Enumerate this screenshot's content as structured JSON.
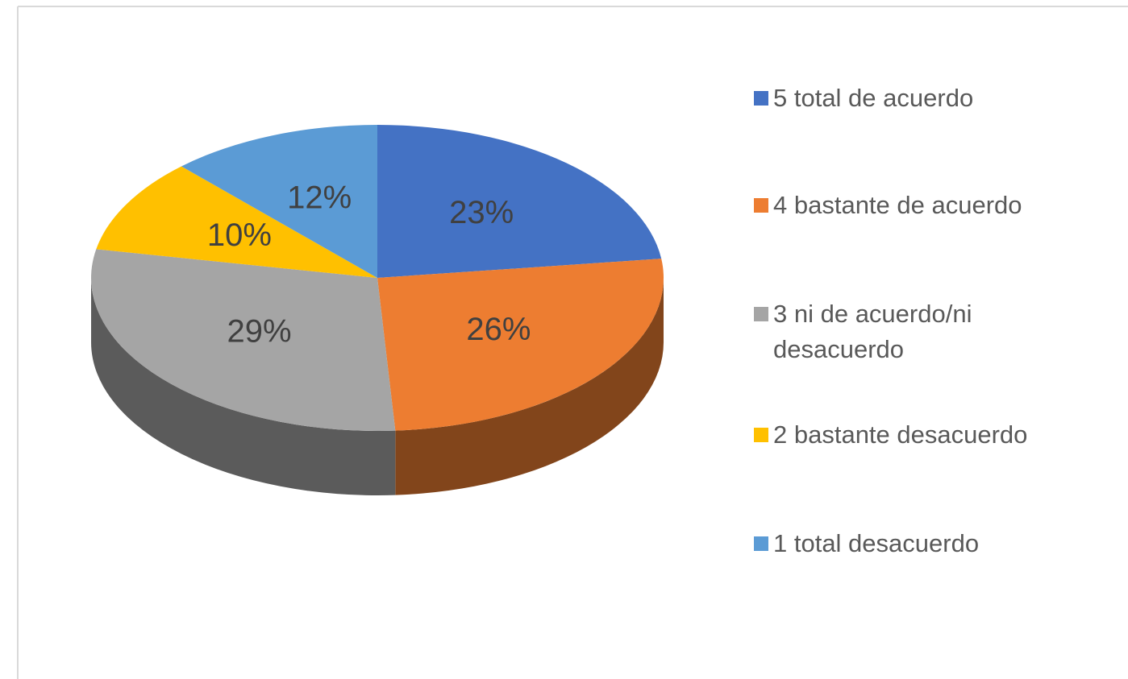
{
  "chart_data": {
    "type": "pie",
    "categories": [
      "5 total de acuerdo",
      "4 bastante de acuerdo",
      "3 ni de acuerdo/ni desacuerdo",
      "2 bastante desacuerdo",
      "1 total desacuerdo"
    ],
    "values": [
      23,
      26,
      29,
      10,
      12
    ],
    "value_labels": [
      "23%",
      "26%",
      "29%",
      "10%",
      "12%"
    ],
    "colors": [
      "#4472c4",
      "#ed7d31",
      "#a5a5a5",
      "#ffc000",
      "#5b9bd5"
    ],
    "legend": "right"
  }
}
